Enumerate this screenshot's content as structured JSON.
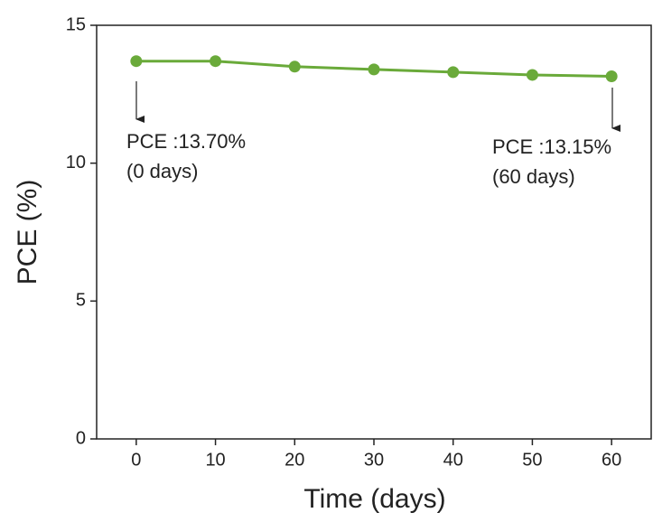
{
  "chart_data": {
    "type": "line",
    "x_label": "Time (days)",
    "y_label": "PCE (%)",
    "x": [
      0,
      10,
      20,
      30,
      40,
      50,
      60
    ],
    "series": [
      {
        "name": "PCE",
        "color": "#6aaa3a",
        "values": [
          13.7,
          13.7,
          13.5,
          13.4,
          13.3,
          13.2,
          13.15
        ]
      }
    ],
    "xlim": [
      -5,
      65
    ],
    "xticks": [
      0,
      10,
      20,
      30,
      40,
      50,
      60
    ],
    "ylim": [
      0,
      15
    ],
    "yticks": [
      0,
      5,
      10,
      15
    ],
    "annotations": [
      {
        "lines": [
          "PCE :13.70%",
          "(0 days)"
        ]
      },
      {
        "lines": [
          "PCE :13.15%",
          "(60 days)"
        ]
      }
    ]
  }
}
